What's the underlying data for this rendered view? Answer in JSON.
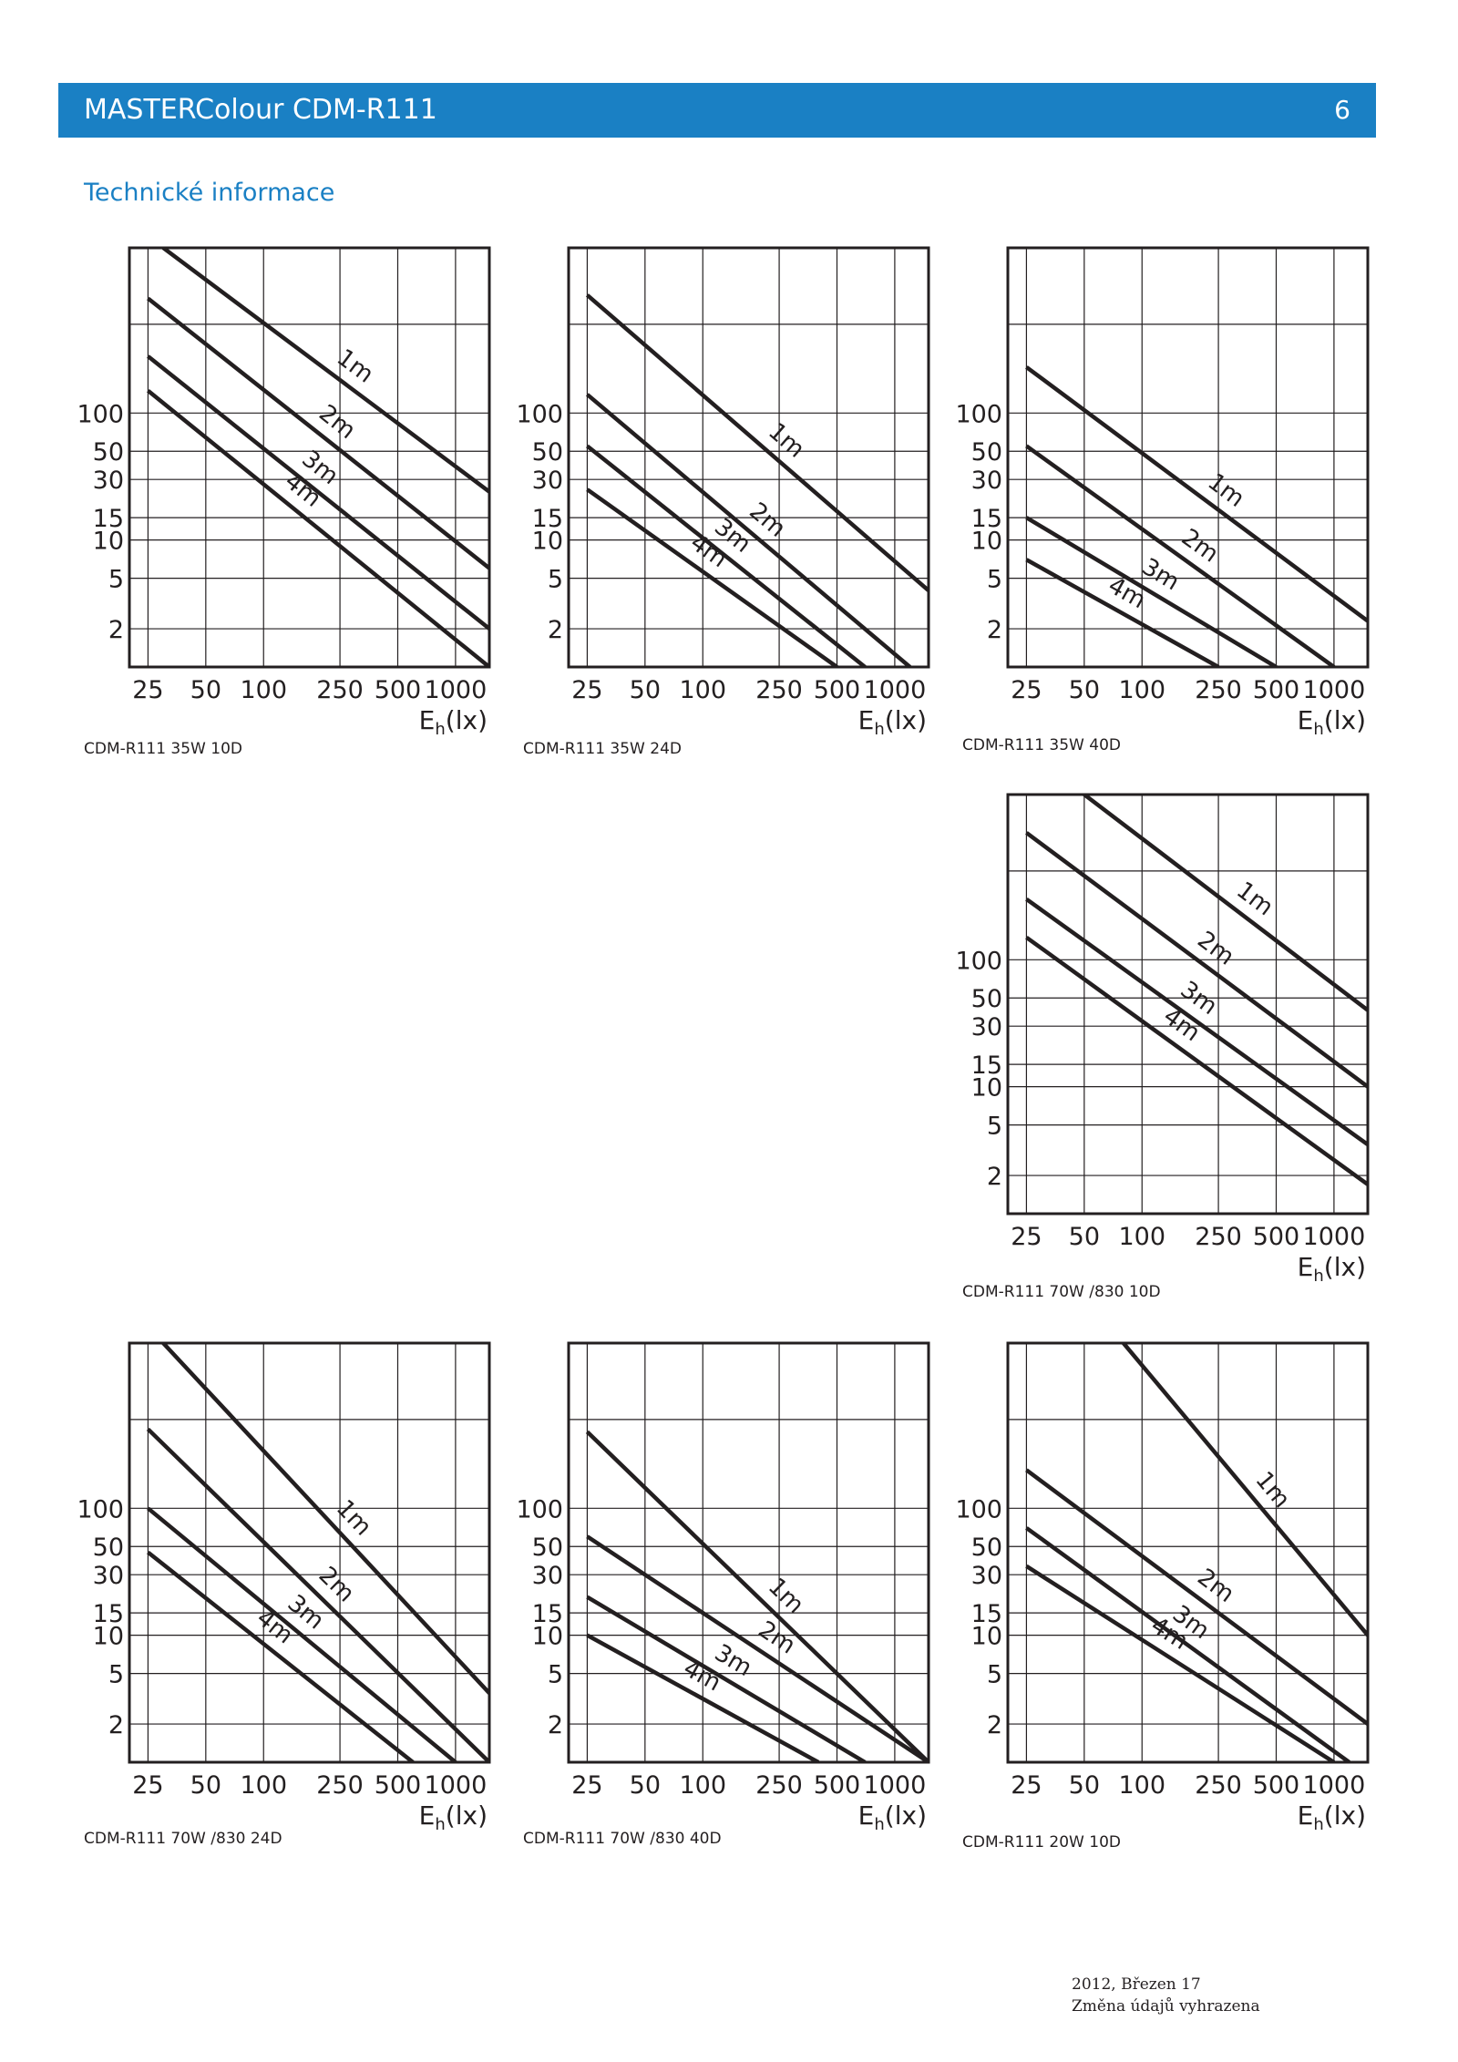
{
  "header": {
    "title": "MASTERColour CDM-R111",
    "page_number": "6"
  },
  "section_title": "Technické informace",
  "footer": {
    "line1": "2012, Březen 17",
    "line2": "Změna údajů vyhrazena"
  },
  "colors": {
    "header_blue": "#1a80c4",
    "line": "#231f20"
  },
  "chart_data": [
    {
      "type": "line",
      "caption": "CDM-R111 35W 10D",
      "x_tick_labels": [
        "25",
        "50",
        "100",
        "250",
        "500",
        "1000"
      ],
      "y_tick_labels": [
        "100",
        "50",
        "30",
        "15",
        "10",
        "5",
        "2"
      ],
      "xlabel_main": "E",
      "xlabel_sub": "h",
      "xlabel_unit": "(lx)",
      "series": [
        {
          "name": "1m",
          "points": [
            [
              30,
              2000
            ],
            [
              1500,
              24
            ]
          ]
        },
        {
          "name": "2m",
          "points": [
            [
              25,
              800
            ],
            [
              1500,
              6
            ]
          ]
        },
        {
          "name": "3m",
          "points": [
            [
              25,
              280
            ],
            [
              1500,
              2
            ]
          ]
        },
        {
          "name": "4m",
          "points": [
            [
              25,
              150
            ],
            [
              1500,
              1
            ]
          ]
        }
      ]
    },
    {
      "type": "line",
      "caption": "CDM-R111 35W 24D",
      "x_tick_labels": [
        "25",
        "50",
        "100",
        "250",
        "500",
        "1000"
      ],
      "y_tick_labels": [
        "100",
        "50",
        "30",
        "15",
        "10",
        "5",
        "2"
      ],
      "xlabel_main": "E",
      "xlabel_sub": "h",
      "xlabel_unit": "(lx)",
      "series": [
        {
          "name": "1m",
          "points": [
            [
              25,
              850
            ],
            [
              1500,
              4
            ]
          ]
        },
        {
          "name": "2m",
          "points": [
            [
              25,
              140
            ],
            [
              1200,
              1
            ]
          ]
        },
        {
          "name": "3m",
          "points": [
            [
              25,
              55
            ],
            [
              700,
              1
            ]
          ]
        },
        {
          "name": "4m",
          "points": [
            [
              25,
              25
            ],
            [
              500,
              1
            ]
          ]
        }
      ]
    },
    {
      "type": "line",
      "caption": "CDM-R111 35W 40D",
      "x_tick_labels": [
        "25",
        "50",
        "100",
        "250",
        "500",
        "1000"
      ],
      "y_tick_labels": [
        "100",
        "50",
        "30",
        "15",
        "10",
        "5",
        "2"
      ],
      "xlabel_main": "E",
      "xlabel_sub": "h",
      "xlabel_unit": "(lx)",
      "series": [
        {
          "name": "1m",
          "points": [
            [
              25,
              230
            ],
            [
              1500,
              2.3
            ]
          ]
        },
        {
          "name": "2m",
          "points": [
            [
              25,
              55
            ],
            [
              1000,
              1
            ]
          ]
        },
        {
          "name": "3m",
          "points": [
            [
              25,
              15
            ],
            [
              500,
              1
            ]
          ]
        },
        {
          "name": "4m",
          "points": [
            [
              25,
              7
            ],
            [
              250,
              1
            ]
          ]
        }
      ]
    },
    {
      "type": "line",
      "caption": "CDM-R111 70W /830 10D",
      "x_tick_labels": [
        "25",
        "50",
        "100",
        "250",
        "500",
        "1000"
      ],
      "y_tick_labels": [
        "100",
        "50",
        "30",
        "15",
        "10",
        "5",
        "2"
      ],
      "xlabel_main": "E",
      "xlabel_sub": "h",
      "xlabel_unit": "(lx)",
      "series": [
        {
          "name": "1m",
          "points": [
            [
              50,
              2000
            ],
            [
              1500,
              40
            ]
          ]
        },
        {
          "name": "2m",
          "points": [
            [
              25,
              1000
            ],
            [
              1500,
              10
            ]
          ]
        },
        {
          "name": "3m",
          "points": [
            [
              25,
              300
            ],
            [
              1500,
              3.5
            ]
          ]
        },
        {
          "name": "4m",
          "points": [
            [
              25,
              150
            ],
            [
              1500,
              1.7
            ]
          ]
        }
      ]
    },
    {
      "type": "line",
      "caption": "CDM-R111 70W /830 24D",
      "x_tick_labels": [
        "25",
        "50",
        "100",
        "250",
        "500",
        "1000"
      ],
      "y_tick_labels": [
        "100",
        "50",
        "30",
        "15",
        "10",
        "5",
        "2"
      ],
      "xlabel_main": "E",
      "xlabel_sub": "h",
      "xlabel_unit": "(lx)",
      "series": [
        {
          "name": "1m",
          "points": [
            [
              30,
              2000
            ],
            [
              1500,
              3.5
            ]
          ]
        },
        {
          "name": "2m",
          "points": [
            [
              25,
              420
            ],
            [
              1500,
              1
            ]
          ]
        },
        {
          "name": "3m",
          "points": [
            [
              25,
              100
            ],
            [
              1000,
              1
            ]
          ]
        },
        {
          "name": "4m",
          "points": [
            [
              25,
              45
            ],
            [
              600,
              1
            ]
          ]
        }
      ]
    },
    {
      "type": "line",
      "caption": "CDM-R111 70W /830 40D",
      "x_tick_labels": [
        "25",
        "50",
        "100",
        "250",
        "500",
        "1000"
      ],
      "y_tick_labels": [
        "100",
        "50",
        "30",
        "15",
        "10",
        "5",
        "2"
      ],
      "xlabel_main": "E",
      "xlabel_sub": "h",
      "xlabel_unit": "(lx)",
      "series": [
        {
          "name": "1m",
          "points": [
            [
              25,
              400
            ],
            [
              1500,
              1
            ]
          ]
        },
        {
          "name": "2m",
          "points": [
            [
              25,
              60
            ],
            [
              1500,
              1
            ]
          ]
        },
        {
          "name": "3m",
          "points": [
            [
              25,
              20
            ],
            [
              700,
              1
            ]
          ]
        },
        {
          "name": "4m",
          "points": [
            [
              25,
              10
            ],
            [
              400,
              1
            ]
          ]
        }
      ]
    },
    {
      "type": "line",
      "caption": "CDM-R111 20W 10D",
      "x_tick_labels": [
        "25",
        "50",
        "100",
        "250",
        "500",
        "1000"
      ],
      "y_tick_labels": [
        "100",
        "50",
        "30",
        "15",
        "10",
        "5",
        "2"
      ],
      "xlabel_main": "E",
      "xlabel_sub": "h",
      "xlabel_unit": "(lx)",
      "series": [
        {
          "name": "1m",
          "points": [
            [
              80,
              2000
            ],
            [
              1500,
              10
            ]
          ]
        },
        {
          "name": "2m",
          "points": [
            [
              25,
              200
            ],
            [
              1500,
              2
            ]
          ]
        },
        {
          "name": "3m",
          "points": [
            [
              25,
              70
            ],
            [
              1200,
              1
            ]
          ]
        },
        {
          "name": "4m",
          "points": [
            [
              25,
              35
            ],
            [
              1000,
              1
            ]
          ]
        }
      ]
    }
  ]
}
